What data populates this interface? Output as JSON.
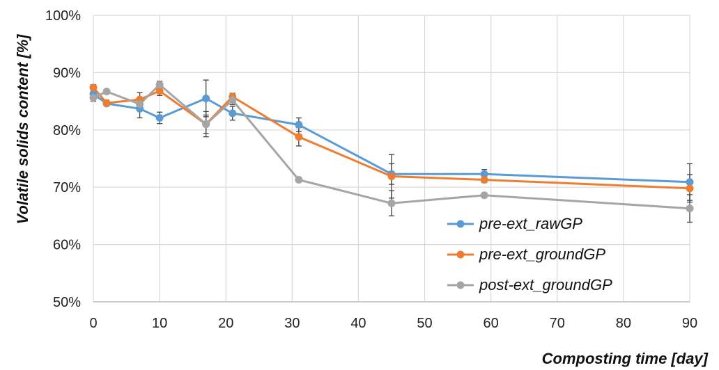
{
  "chart_data": {
    "type": "line",
    "xlabel": "Composting time [day]",
    "ylabel": "Volatile solids content [%]",
    "xlim": [
      0,
      90
    ],
    "ylim": [
      50,
      100
    ],
    "x_ticks": [
      "0",
      "10",
      "20",
      "30",
      "40",
      "50",
      "60",
      "70",
      "80",
      "90"
    ],
    "y_ticks": [
      "50%",
      "60%",
      "70%",
      "80%",
      "90%",
      "100%"
    ],
    "grid": "vertical and horizontal",
    "legend_position": "bottom-right inside plot",
    "series": [
      {
        "name": "pre-ext_rawGP",
        "color": "#5B9BD5",
        "x": [
          0,
          2,
          7,
          10,
          17,
          21,
          31,
          45,
          59,
          90
        ],
        "y": [
          86.3,
          84.6,
          83.7,
          82.1,
          85.5,
          82.9,
          80.9,
          72.3,
          72.3,
          70.9
        ],
        "err": [
          0.6,
          0.4,
          1.6,
          1.0,
          3.2,
          1.2,
          1.2,
          1.8,
          0.8,
          3.2
        ]
      },
      {
        "name": "pre-ext_groundGP",
        "color": "#ED7D31",
        "x": [
          0,
          2,
          7,
          10,
          17,
          21,
          31,
          45,
          59,
          90
        ],
        "y": [
          87.4,
          84.7,
          85.3,
          86.8,
          81.0,
          85.8,
          78.8,
          71.9,
          71.3,
          69.8
        ],
        "err": [
          0.5,
          0.5,
          1.2,
          0.8,
          2.2,
          0.6,
          1.6,
          3.8,
          0.5,
          2.4
        ]
      },
      {
        "name": "post-ext_groundGP",
        "color": "#A5A5A5",
        "x": [
          0,
          2,
          7,
          10,
          17,
          21,
          31,
          45,
          59,
          90
        ],
        "y": [
          85.6,
          86.7,
          84.5,
          87.9,
          81.0,
          85.2,
          71.3,
          67.2,
          68.6,
          66.3
        ],
        "err": [
          0.6,
          0.4,
          1.0,
          0.6,
          1.6,
          0.8,
          0.4,
          2.2,
          0.4,
          2.4
        ]
      }
    ]
  }
}
